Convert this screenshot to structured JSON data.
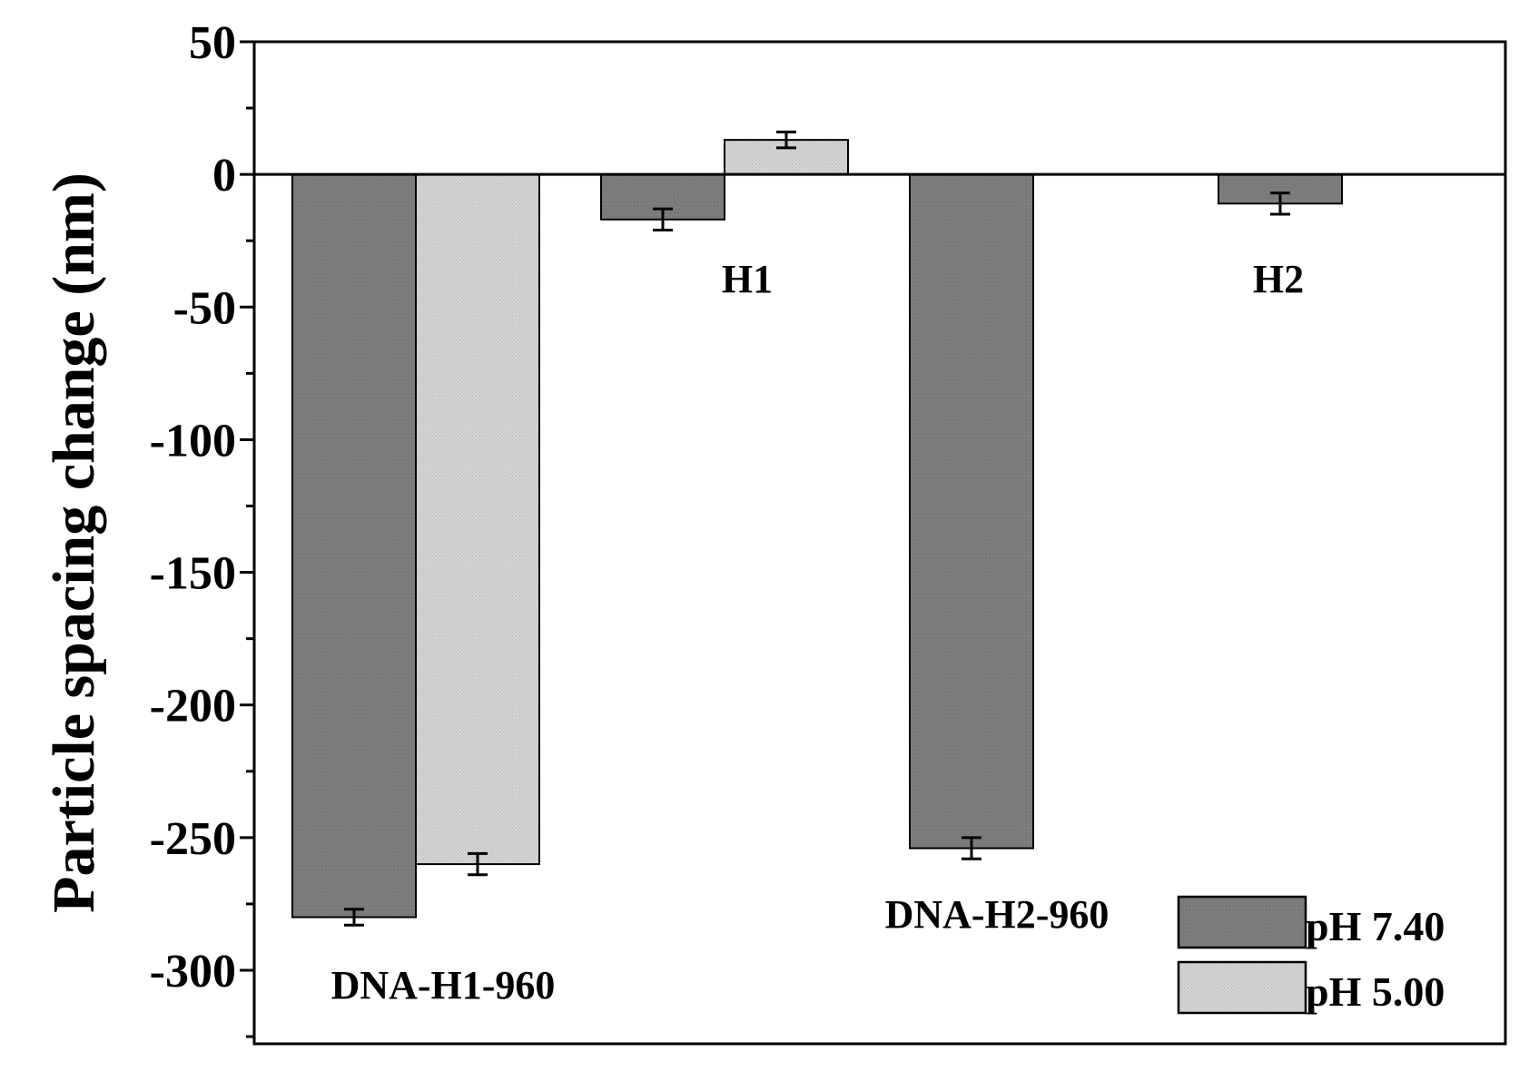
{
  "chart_data": {
    "type": "bar",
    "title": "",
    "xlabel": "",
    "ylabel": "Particle spacing change (nm)",
    "ylim": [
      -325,
      50
    ],
    "yticks": [
      50,
      0,
      -50,
      -100,
      -150,
      -200,
      -250,
      -300
    ],
    "ytick_labels": [
      "50",
      "0",
      "-50",
      "-100",
      "-150",
      "-200",
      "-250",
      "-300"
    ],
    "grid": false,
    "legend_position": "bottom-right",
    "categories": [
      "DNA-H1-960",
      "H1",
      "DNA-H2-960",
      "H2"
    ],
    "series": [
      {
        "name": "pH 7.40",
        "color": "#7a7a7a",
        "values": [
          -280,
          -17,
          -254,
          -11
        ],
        "errors": [
          3,
          4,
          4,
          4
        ]
      },
      {
        "name": "pH 5.00",
        "color": "#cfcfcf",
        "values": [
          -260,
          13,
          null,
          null
        ],
        "errors": [
          4,
          3,
          null,
          null
        ]
      }
    ]
  }
}
